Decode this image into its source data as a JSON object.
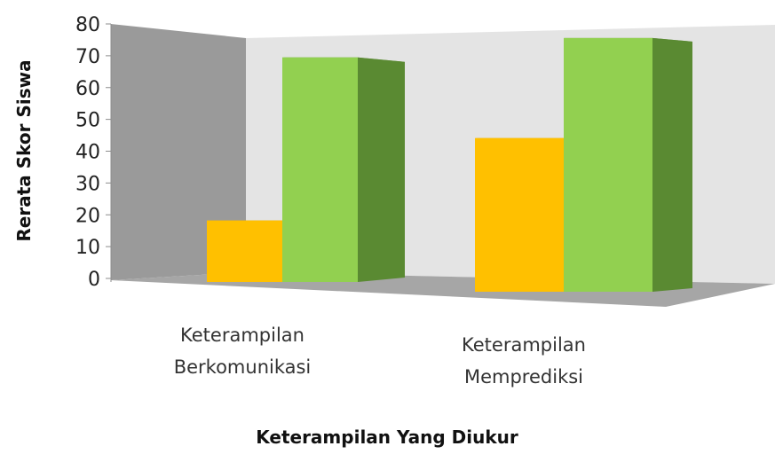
{
  "chart_data": {
    "type": "bar",
    "title": "",
    "xlabel": "Keterampilan Yang Diukur",
    "ylabel": "Rerata Skor Siswa",
    "ylim": [
      0,
      80
    ],
    "yticks": [
      "0",
      "10",
      "20",
      "30",
      "40",
      "50",
      "60",
      "70",
      "80"
    ],
    "grid": false,
    "categories": [
      {
        "lines": [
          "Keterampilan",
          "Berkomunikasi"
        ]
      },
      {
        "lines": [
          "Keterampilan",
          "Memprediksi"
        ]
      }
    ],
    "series": [
      {
        "color": "#FFC000",
        "side_color": "#C09000",
        "values": [
          20,
          43
        ]
      },
      {
        "color": "#92D050",
        "side_color": "#5A8A32",
        "values": [
          73,
          71
        ]
      }
    ],
    "colors": {
      "back_wall": "#E4E4E4",
      "side_wall": "#9A9A9A",
      "floor": "#A6A6A6"
    }
  }
}
